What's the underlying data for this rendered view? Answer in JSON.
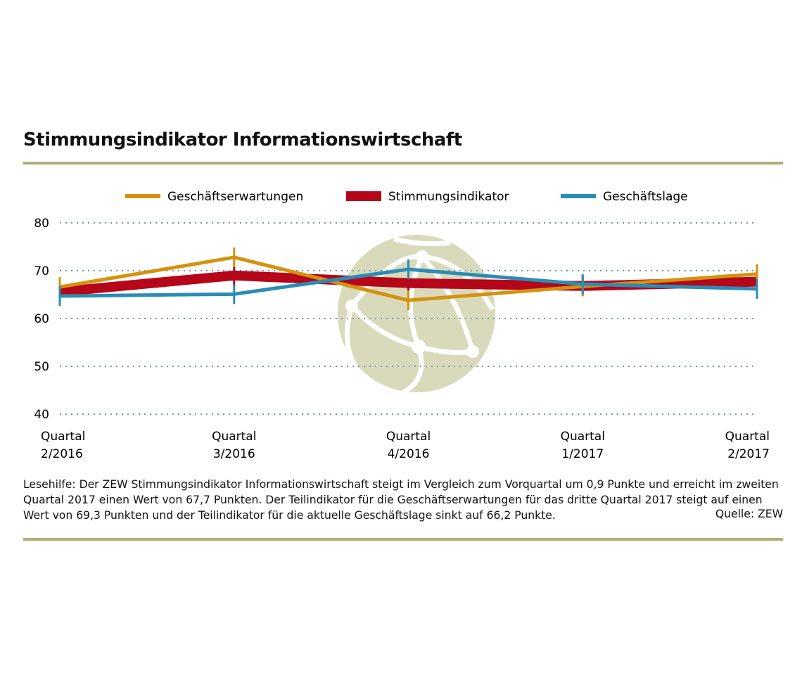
{
  "header": {
    "title": "Stimmungsindikator Informationswirtschaft"
  },
  "chart_data": {
    "type": "line",
    "title": "Stimmungsindikator Informationswirtschaft",
    "categories": [
      [
        "Quartal",
        "2/2016"
      ],
      [
        "Quartal",
        "3/2016"
      ],
      [
        "Quartal",
        "4/2016"
      ],
      [
        "Quartal",
        "1/2017"
      ],
      [
        "Quartal",
        "2/2017"
      ]
    ],
    "ylim": [
      40,
      80
    ],
    "yticks": [
      40,
      50,
      60,
      70,
      80
    ],
    "grid": true,
    "legend": "top",
    "series": [
      {
        "name": "Geschäftserwartungen",
        "color": "#d4920e",
        "values": [
          66.6,
          72.8,
          63.8,
          66.7,
          69.3
        ]
      },
      {
        "name": "Stimmungsindikator",
        "color": "#b5061a",
        "values": [
          65.6,
          69.0,
          67.4,
          66.8,
          67.7
        ]
      },
      {
        "name": "Geschäftslage",
        "color": "#2a8db5",
        "values": [
          64.7,
          65.1,
          70.3,
          67.2,
          66.2
        ]
      }
    ]
  },
  "footer": {
    "note": "Lesehilfe: Der ZEW Stimmungsindikator Informationswirtschaft steigt im Vergleich zum Vorquartal um 0,9 Punkte und erreicht im zweiten Quartal 2017 einen Wert von 67,7 Punkten. Der Teilindikator für die Geschäftserwartungen für das dritte Quartal 2017 steigt auf einen Wert von 69,3 Punkten und der Teilindikator für die aktuelle Geschäftslage sinkt auf 66,2 Punkte.",
    "source": "Quelle: ZEW"
  }
}
